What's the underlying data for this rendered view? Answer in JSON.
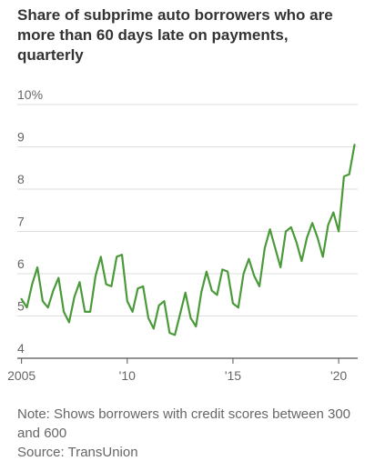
{
  "chart_data": {
    "type": "line",
    "title": "Share of subprime auto borrowers who are more than 60 days late on payments, quarterly",
    "ylim": [
      4,
      10
    ],
    "y_ticks": [
      {
        "value": 10,
        "label": "10%"
      },
      {
        "value": 9,
        "label": "9"
      },
      {
        "value": 8,
        "label": "8"
      },
      {
        "value": 7,
        "label": "7"
      },
      {
        "value": 6,
        "label": "6"
      },
      {
        "value": 5,
        "label": "5"
      },
      {
        "value": 4,
        "label": "4"
      }
    ],
    "x_ticks": [
      {
        "value": 2005,
        "label": "2005"
      },
      {
        "value": 2010,
        "label": "'10"
      },
      {
        "value": 2015,
        "label": "'15"
      },
      {
        "value": 2020,
        "label": "'20"
      }
    ],
    "xlim": [
      2004.8,
      2020.9
    ],
    "grid": true,
    "series": [
      {
        "color": "#4a9a3a",
        "x": [
          2005.0,
          2005.25,
          2005.5,
          2005.75,
          2006.0,
          2006.25,
          2006.5,
          2006.75,
          2007.0,
          2007.25,
          2007.5,
          2007.75,
          2008.0,
          2008.25,
          2008.5,
          2008.75,
          2009.0,
          2009.25,
          2009.5,
          2009.75,
          2010.0,
          2010.25,
          2010.5,
          2010.75,
          2011.0,
          2011.25,
          2011.5,
          2011.75,
          2012.0,
          2012.25,
          2012.5,
          2012.75,
          2013.0,
          2013.25,
          2013.5,
          2013.75,
          2014.0,
          2014.25,
          2014.5,
          2014.75,
          2015.0,
          2015.25,
          2015.5,
          2015.75,
          2016.0,
          2016.25,
          2016.5,
          2016.75,
          2017.0,
          2017.25,
          2017.5,
          2017.75,
          2018.0,
          2018.25,
          2018.5,
          2018.75,
          2019.0,
          2019.25,
          2019.5,
          2019.75,
          2020.0,
          2020.25,
          2020.5,
          2020.75
        ],
        "values": [
          5.4,
          5.2,
          5.75,
          6.15,
          5.35,
          5.2,
          5.6,
          5.9,
          5.1,
          4.85,
          5.45,
          5.8,
          5.1,
          5.1,
          5.95,
          6.4,
          5.75,
          5.7,
          6.4,
          6.45,
          5.35,
          5.1,
          5.65,
          5.7,
          4.95,
          4.7,
          5.25,
          5.35,
          4.6,
          4.55,
          5.05,
          5.55,
          4.95,
          4.75,
          5.55,
          6.05,
          5.6,
          5.5,
          6.1,
          6.05,
          5.3,
          5.2,
          6.0,
          6.35,
          5.95,
          5.7,
          6.6,
          7.05,
          6.6,
          6.15,
          7.0,
          7.1,
          6.75,
          6.3,
          6.85,
          7.2,
          6.85,
          6.4,
          7.15,
          7.45,
          7.0,
          8.3,
          8.35,
          9.05
        ]
      }
    ],
    "note": "Note: Shows borrowers with credit scores between 300 and 600",
    "source": "Source: TransUnion"
  }
}
